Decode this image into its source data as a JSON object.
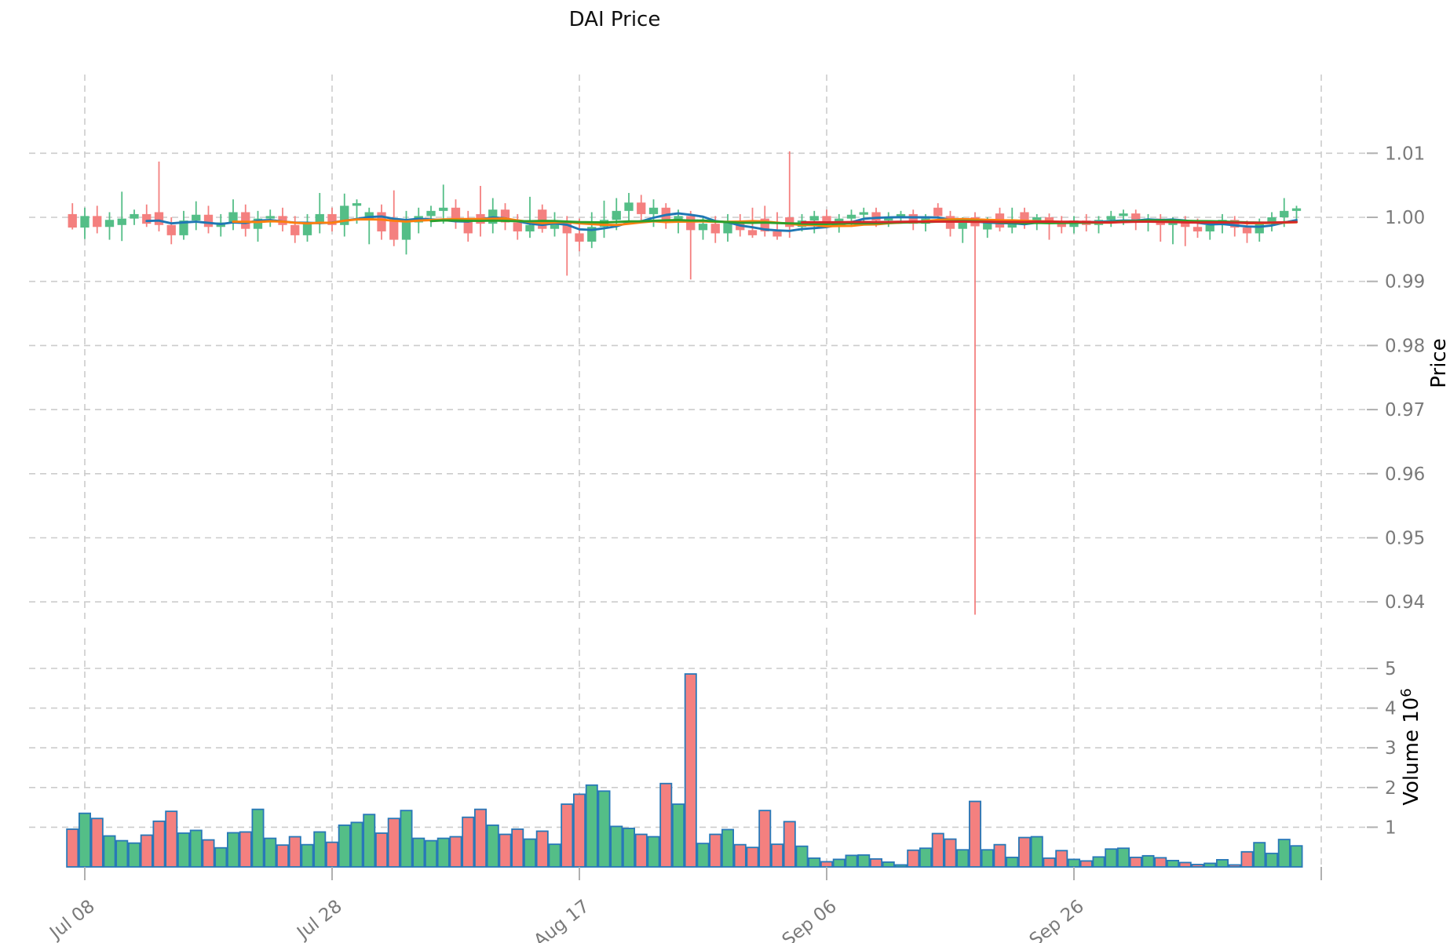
{
  "title": "DAI Price",
  "axes": {
    "price_label": "Price",
    "volume_label": "Volume",
    "volume_unit_base": "10",
    "volume_unit_exp": "6",
    "price_ticks": [
      "1.01",
      "1.00",
      "0.99",
      "0.98",
      "0.97",
      "0.96",
      "0.95",
      "0.94"
    ],
    "volume_ticks": [
      "1",
      "2",
      "3",
      "4",
      "5"
    ]
  },
  "colors": {
    "up": "#54be87",
    "down": "#f4807f",
    "volume_edge": "#2878b8",
    "mav": [
      "#1f77b4",
      "#ff7f0e",
      "#2ca02c",
      "#d62728"
    ],
    "grid": "#cccccc",
    "tick_mark": "#b0b0b0",
    "tick_label": "#7a7a7a",
    "title_color": "#111111",
    "axis_label": "#000000"
  },
  "chart_data": {
    "type": "candlestick",
    "title": "DAI Price",
    "ylabel_price": "Price",
    "ylabel_volume": "Volume 10^6",
    "ylim_price": [
      0.935,
      1.0135
    ],
    "yticks_price": [
      1.01,
      1.0,
      0.99,
      0.98,
      0.97,
      0.96,
      0.95,
      0.94
    ],
    "ylim_volume_millions": [
      0,
      6.0
    ],
    "yticks_volume_millions": [
      1,
      2,
      3,
      4,
      5
    ],
    "grid": "dashed",
    "legend": "none",
    "xticks": [
      {
        "index": 1,
        "label": "Jul 08"
      },
      {
        "index": 21,
        "label": "Jul 28"
      },
      {
        "index": 41,
        "label": "Aug 17"
      },
      {
        "index": 61,
        "label": "Sep 06"
      },
      {
        "index": 81,
        "label": "Sep 26"
      },
      {
        "index": 101,
        "label": ""
      }
    ],
    "moving_averages": [
      {
        "window": 7,
        "color_index": 0
      },
      {
        "window": 14,
        "color_index": 1
      },
      {
        "window": 30,
        "color_index": 2
      },
      {
        "window": 60,
        "color_index": 3
      }
    ],
    "columns": [
      "date",
      "open",
      "high",
      "low",
      "close",
      "volume_millions"
    ],
    "rows": [
      [
        "Jul 07",
        1.0005,
        1.0022,
        0.9981,
        0.9984,
        0.95
      ],
      [
        "Jul 08",
        0.9984,
        1.0015,
        0.9966,
        1.0002,
        1.35
      ],
      [
        "Jul 09",
        1.0002,
        1.0018,
        0.9975,
        0.9985,
        1.22
      ],
      [
        "Jul 10",
        0.9985,
        1.0008,
        0.9965,
        0.9996,
        0.78
      ],
      [
        "Jul 11",
        0.9988,
        1.004,
        0.9963,
        0.9998,
        0.66
      ],
      [
        "Jul 12",
        0.9998,
        1.0012,
        0.9988,
        1.0005,
        0.6
      ],
      [
        "Jul 13",
        1.0005,
        1.002,
        0.9985,
        0.999,
        0.8
      ],
      [
        "Jul 14",
        1.0008,
        1.0087,
        0.9978,
        0.9988,
        1.15
      ],
      [
        "Jul 15",
        0.9988,
        1.0,
        0.9958,
        0.9972,
        1.4
      ],
      [
        "Jul 16",
        0.9972,
        1.001,
        0.9965,
        0.9995,
        0.85
      ],
      [
        "Jul 17",
        0.9995,
        1.0025,
        0.998,
        1.0004,
        0.92
      ],
      [
        "Jul 18",
        1.0004,
        1.0018,
        0.9975,
        0.9985,
        0.68
      ],
      [
        "Jul 19",
        0.9985,
        1.0005,
        0.997,
        0.9992,
        0.48
      ],
      [
        "Jul 20",
        0.9992,
        1.0028,
        0.998,
        1.0008,
        0.86
      ],
      [
        "Jul 21",
        1.0008,
        1.002,
        0.997,
        0.9982,
        0.88
      ],
      [
        "Jul 22",
        0.9982,
        1.001,
        0.9962,
        0.9998,
        1.45
      ],
      [
        "Jul 23",
        0.9998,
        1.0012,
        0.9985,
        1.0002,
        0.72
      ],
      [
        "Jul 24",
        1.0002,
        1.0015,
        0.9978,
        0.9988,
        0.55
      ],
      [
        "Jul 25",
        0.9988,
        1.0002,
        0.996,
        0.9972,
        0.76
      ],
      [
        "Jul 26",
        0.9972,
        1.0005,
        0.9962,
        0.999,
        0.56
      ],
      [
        "Jul 27",
        0.999,
        1.0038,
        0.9975,
        1.0005,
        0.88
      ],
      [
        "Jul 28",
        1.0005,
        1.0015,
        0.9978,
        0.9988,
        0.62
      ],
      [
        "Jul 29",
        0.9988,
        1.0037,
        0.997,
        1.0018,
        1.05
      ],
      [
        "Jul 30",
        1.0018,
        1.0028,
        0.999,
        1.0022,
        1.12
      ],
      [
        "Jul 31",
        0.9998,
        1.0015,
        0.9958,
        1.0008,
        1.32
      ],
      [
        "Aug 01",
        1.0008,
        1.002,
        0.9965,
        0.9978,
        0.85
      ],
      [
        "Aug 02",
        0.9995,
        1.0042,
        0.9955,
        0.9965,
        1.22
      ],
      [
        "Aug 03",
        0.9965,
        1.001,
        0.9942,
        0.9992,
        1.42
      ],
      [
        "Aug 04",
        0.9992,
        1.0015,
        0.9975,
        1.0002,
        0.72
      ],
      [
        "Aug 05",
        1.0002,
        1.0018,
        0.9985,
        1.001,
        0.66
      ],
      [
        "Aug 06",
        1.001,
        1.0051,
        0.999,
        1.0015,
        0.72
      ],
      [
        "Aug 07",
        1.0015,
        1.0028,
        0.9982,
        0.9995,
        0.76
      ],
      [
        "Aug 08",
        0.9995,
        1.001,
        0.9962,
        0.9975,
        1.25
      ],
      [
        "Aug 09",
        1.0005,
        1.0049,
        0.997,
        0.999,
        1.45
      ],
      [
        "Aug 10",
        0.999,
        1.003,
        0.9975,
        1.0012,
        1.05
      ],
      [
        "Aug 11",
        1.0012,
        1.0022,
        0.998,
        0.9992,
        0.82
      ],
      [
        "Aug 12",
        0.9992,
        1.0005,
        0.9965,
        0.9978,
        0.95
      ],
      [
        "Aug 13",
        0.9978,
        1.0032,
        0.9968,
        0.9988,
        0.7
      ],
      [
        "Aug 14",
        1.0012,
        1.002,
        0.9976,
        0.9982,
        0.9
      ],
      [
        "Aug 15",
        0.9982,
        1.0008,
        0.997,
        0.9992,
        0.57
      ],
      [
        "Aug 16",
        0.9992,
        1.0002,
        0.9909,
        0.9975,
        1.58
      ],
      [
        "Aug 17",
        0.9975,
        0.9998,
        0.9947,
        0.9962,
        1.83
      ],
      [
        "Aug 18",
        0.9962,
        1.0008,
        0.9952,
        0.9985,
        2.06
      ],
      [
        "Aug 19",
        0.9985,
        1.0026,
        0.9968,
        0.9996,
        1.91
      ],
      [
        "Aug 20",
        0.9996,
        1.003,
        0.998,
        1.001,
        1.02
      ],
      [
        "Aug 21",
        1.001,
        1.0038,
        0.999,
        1.0023,
        0.97
      ],
      [
        "Aug 22",
        1.0023,
        1.0035,
        0.9995,
        1.0005,
        0.82
      ],
      [
        "Aug 23",
        1.0005,
        1.0028,
        0.9985,
        1.0015,
        0.76
      ],
      [
        "Aug 24",
        1.0015,
        1.0022,
        0.9982,
        0.9992,
        2.1
      ],
      [
        "Aug 25",
        0.9992,
        1.0012,
        0.9975,
        1.0002,
        1.58
      ],
      [
        "Aug 26",
        1.0002,
        1.001,
        0.9903,
        0.998,
        4.86
      ],
      [
        "Aug 27",
        0.998,
        1.0,
        0.9965,
        0.999,
        0.59
      ],
      [
        "Aug 28",
        0.999,
        1.0002,
        0.996,
        0.9975,
        0.82
      ],
      [
        "Aug 29",
        0.9975,
        1.0005,
        0.9962,
        0.9992,
        0.94
      ],
      [
        "Aug 30",
        0.9992,
        1.0005,
        0.997,
        0.998,
        0.56
      ],
      [
        "Aug 31",
        0.998,
        1.0015,
        0.9968,
        0.9972,
        0.49
      ],
      [
        "Sep 01",
        0.9998,
        1.0018,
        0.997,
        0.9978,
        1.42
      ],
      [
        "Sep 02",
        0.9978,
        1.0008,
        0.9965,
        0.997,
        0.57
      ],
      [
        "Sep 03",
        1.0,
        1.0103,
        0.9968,
        0.9985,
        1.14
      ],
      [
        "Sep 04",
        0.9985,
        1.0005,
        0.9978,
        0.9995,
        0.52
      ],
      [
        "Sep 05",
        0.9995,
        1.001,
        0.9975,
        1.0002,
        0.22
      ],
      [
        "Sep 06",
        1.0002,
        1.0012,
        0.9985,
        0.9992,
        0.13
      ],
      [
        "Sep 07",
        0.9992,
        1.0005,
        0.9976,
        0.9998,
        0.19
      ],
      [
        "Sep 08",
        0.9998,
        1.0012,
        0.9985,
        1.0004,
        0.29
      ],
      [
        "Sep 09",
        1.0004,
        1.0015,
        0.999,
        1.0008,
        0.3
      ],
      [
        "Sep 10",
        1.0008,
        1.0015,
        0.9985,
        0.9995,
        0.2
      ],
      [
        "Sep 11",
        0.9995,
        1.0008,
        0.9985,
        1.0,
        0.12
      ],
      [
        "Sep 12",
        1.0,
        1.001,
        0.999,
        1.0005,
        0.05
      ],
      [
        "Sep 13",
        1.0005,
        1.0012,
        0.998,
        0.999,
        0.42
      ],
      [
        "Sep 14",
        0.999,
        1.0005,
        0.9978,
        0.9998,
        0.47
      ],
      [
        "Sep 15",
        1.0015,
        1.0022,
        0.9992,
        1.0002,
        0.84
      ],
      [
        "Sep 16",
        1.0002,
        1.001,
        0.997,
        0.9982,
        0.7
      ],
      [
        "Sep 17",
        0.9982,
        1.0,
        0.996,
        0.9992,
        0.43
      ],
      [
        "Sep 18",
        1.0,
        1.0008,
        0.938,
        0.9986,
        1.65
      ],
      [
        "Sep 19",
        0.9981,
        1.0,
        0.9968,
        0.9993,
        0.43
      ],
      [
        "Sep 20",
        1.0006,
        1.0015,
        0.9978,
        0.9984,
        0.56
      ],
      [
        "Sep 21",
        0.9984,
        1.0015,
        0.9975,
        0.9996,
        0.24
      ],
      [
        "Sep 22",
        1.0008,
        1.0015,
        0.9982,
        0.9992,
        0.74
      ],
      [
        "Sep 23",
        0.9992,
        1.0005,
        0.998,
        1.0,
        0.76
      ],
      [
        "Sep 24",
        1.0,
        1.0006,
        0.9965,
        0.9993,
        0.22
      ],
      [
        "Sep 25",
        0.9993,
        1.0002,
        0.9975,
        0.9985,
        0.41
      ],
      [
        "Sep 26",
        0.9985,
        1.0002,
        0.9975,
        0.9995,
        0.19
      ],
      [
        "Sep 27",
        0.9995,
        1.0005,
        0.9978,
        0.9988,
        0.15
      ],
      [
        "Sep 28",
        0.9988,
        1.0002,
        0.9975,
        0.9996,
        0.25
      ],
      [
        "Sep 29",
        0.9996,
        1.001,
        0.9985,
        1.0002,
        0.45
      ],
      [
        "Sep 30",
        1.0002,
        1.0012,
        0.9988,
        1.0006,
        0.47
      ],
      [
        "Oct 01",
        1.0006,
        1.0012,
        0.998,
        0.9992,
        0.24
      ],
      [
        "Oct 02",
        0.9992,
        1.0005,
        0.9978,
        0.9998,
        0.28
      ],
      [
        "Oct 03",
        0.9998,
        1.0005,
        0.9962,
        0.9988,
        0.23
      ],
      [
        "Oct 04",
        0.9988,
        1.0,
        0.9958,
        0.9994,
        0.16
      ],
      [
        "Oct 05",
        0.9994,
        1.0002,
        0.9955,
        0.9985,
        0.11
      ],
      [
        "Oct 06",
        0.9985,
        0.9998,
        0.9968,
        0.9978,
        0.06
      ],
      [
        "Oct 07",
        0.9978,
        0.9995,
        0.9965,
        0.9988,
        0.09
      ],
      [
        "Oct 08",
        0.9988,
        1.0005,
        0.9975,
        0.9996,
        0.18
      ],
      [
        "Oct 09",
        0.9996,
        1.0002,
        0.997,
        0.9984,
        0.05
      ],
      [
        "Oct 10",
        0.9984,
        0.9995,
        0.996,
        0.9975,
        0.38
      ],
      [
        "Oct 11",
        0.9975,
        0.9998,
        0.9962,
        0.999,
        0.61
      ],
      [
        "Oct 12",
        0.999,
        1.0008,
        0.9978,
        1.0,
        0.34
      ],
      [
        "Oct 13",
        1.0,
        1.003,
        0.9985,
        1.001,
        0.69
      ],
      [
        "Oct 14",
        1.001,
        1.0018,
        0.9992,
        1.0014,
        0.53
      ]
    ]
  }
}
